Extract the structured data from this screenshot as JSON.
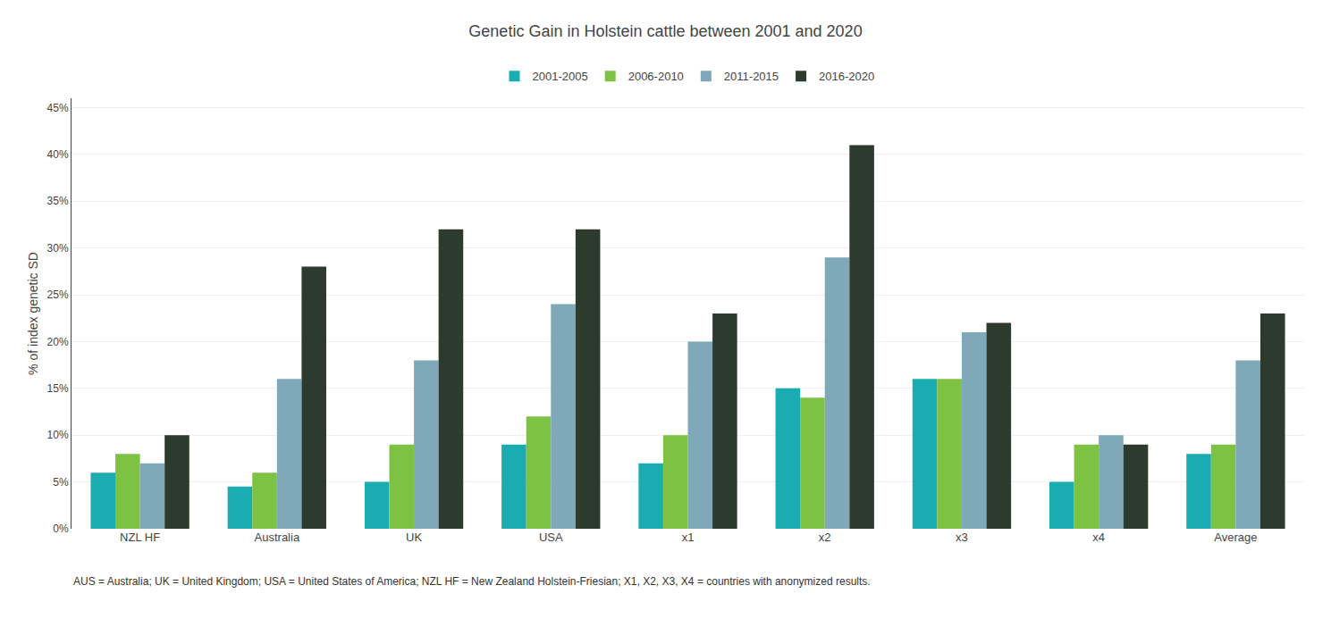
{
  "chart_data": {
    "type": "bar",
    "title": "Genetic Gain in Holstein cattle between 2001 and 2020",
    "ylabel": "% of index genetic SD",
    "categories": [
      "NZL HF",
      "Australia",
      "UK",
      "USA",
      "x1",
      "x2",
      "x3",
      "x4",
      "Average"
    ],
    "series": [
      {
        "name": "2001-2005",
        "color": "#1AACB0",
        "values": [
          0.06,
          0.045,
          0.05,
          0.09,
          0.07,
          0.15,
          0.16,
          0.05,
          0.08
        ]
      },
      {
        "name": "2006-2010",
        "color": "#7DC243",
        "values": [
          0.08,
          0.06,
          0.09,
          0.12,
          0.1,
          0.14,
          0.16,
          0.09,
          0.09
        ]
      },
      {
        "name": "2011-2015",
        "color": "#7FA8B8",
        "values": [
          0.07,
          0.16,
          0.18,
          0.24,
          0.2,
          0.29,
          0.21,
          0.1,
          0.18
        ]
      },
      {
        "name": "2016-2020",
        "color": "#2C3B2D",
        "values": [
          0.1,
          0.28,
          0.32,
          0.32,
          0.23,
          0.41,
          0.22,
          0.09,
          0.23
        ]
      }
    ],
    "ylim": [
      0,
      0.46
    ],
    "yticks": [
      {
        "value": 0,
        "label": "0%"
      },
      {
        "value": 0.05,
        "label": "5%"
      },
      {
        "value": 0.1,
        "label": "10%"
      },
      {
        "value": 0.15,
        "label": "15%"
      },
      {
        "value": 0.2,
        "label": "20%"
      },
      {
        "value": 0.25,
        "label": "25%"
      },
      {
        "value": 0.3,
        "label": "30%"
      },
      {
        "value": 0.35,
        "label": "35%"
      },
      {
        "value": 0.4,
        "label": "40%"
      },
      {
        "value": 0.45,
        "label": "45%"
      }
    ],
    "grid": true,
    "legend": "top",
    "annotations": [
      "AUS = Australia; UK = United Kingdom; USA = United States of America; NZL HF = New Zealand Holstein-Friesian; X1, X2, X3, X4 = countries with anonymized results."
    ]
  }
}
